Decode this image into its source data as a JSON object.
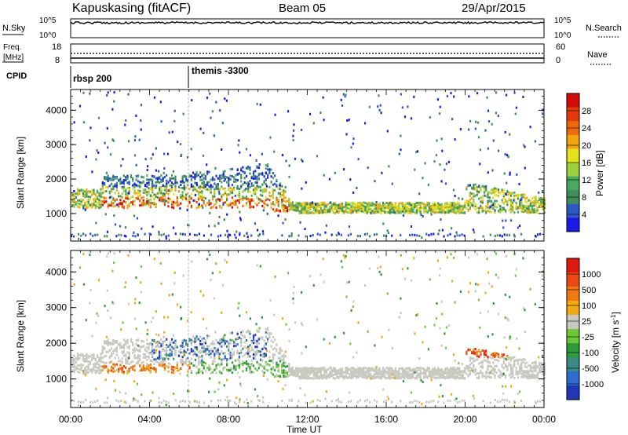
{
  "header": {
    "station": "Kapuskasing (fitACF)",
    "beam": "Beam 05",
    "date": "29/Apr/2015"
  },
  "sky_panel": {
    "left_label": "N.Sky",
    "right_label": "N.Search",
    "tick_top": "10^5",
    "tick_bottom": "10^0",
    "right_legend_style": "dotted"
  },
  "freq_panel": {
    "left_label_line1": "Freq.",
    "left_label_line2": "[MHz]",
    "left_tick_top": "18",
    "left_tick_bottom": "8",
    "right_label": "Nave",
    "right_tick_top": "60",
    "right_tick_bottom": "0",
    "right_legend_style": "dotted"
  },
  "cpid_panel": {
    "label": "CPID",
    "entries": [
      {
        "text": "rbsp 200",
        "time": "00:00"
      },
      {
        "text": "themis -3300",
        "time": "06:00"
      }
    ]
  },
  "x_axis": {
    "label": "Time UT",
    "ticks": [
      "00:00",
      "04:00",
      "08:00",
      "12:00",
      "16:00",
      "20:00",
      "00:00"
    ],
    "range_hours": [
      0,
      24
    ]
  },
  "chart_data": [
    {
      "type": "heatmap",
      "quantity": "Power",
      "ylabel": "Slant Range [km]",
      "xlabel": "Time UT",
      "yticks": [
        "1000",
        "2000",
        "3000",
        "4000"
      ],
      "ylim": [
        200,
        4600
      ],
      "xlim_hours": [
        0,
        24
      ],
      "colorbar": {
        "label": "Power [dB]",
        "ticks": [
          "4",
          "8",
          "12",
          "16",
          "20",
          "24",
          "28"
        ],
        "colors": [
          "#1a1ae6",
          "#2c58c4",
          "#3f8e5a",
          "#4aa860",
          "#9bd13a",
          "#e6e01a",
          "#f2a40f",
          "#ee6a0a",
          "#e23a0a",
          "#d10a0a"
        ]
      }
    },
    {
      "type": "heatmap",
      "quantity": "Velocity",
      "ylabel": "Slant Range [km]",
      "xlabel": "Time UT",
      "yticks": [
        "1000",
        "2000",
        "3000",
        "4000"
      ],
      "ylim": [
        200,
        4600
      ],
      "xlim_hours": [
        0,
        24
      ],
      "colorbar": {
        "label": "Velocity [m s",
        "label_sup": "-1",
        "label_end": "]",
        "ticks": [
          "1000",
          "500",
          "100",
          "25",
          "-25",
          "-100",
          "-500",
          "-1000"
        ],
        "colors": [
          "#2038b8",
          "#2f6cd0",
          "#3b8a86",
          "#2f9a3c",
          "#6cc838",
          "#c8c8c0",
          "#f2a810",
          "#f07a10",
          "#ea4a12",
          "#e01a10"
        ]
      }
    }
  ]
}
